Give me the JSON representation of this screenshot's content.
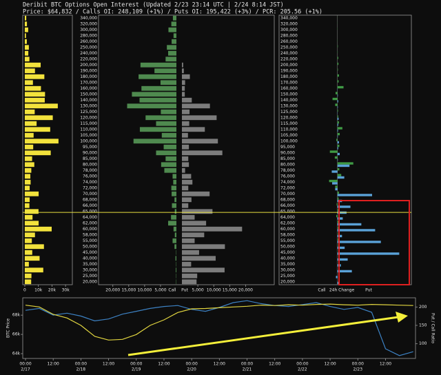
{
  "chart_data": [
    {
      "type": "oi-ladder",
      "title": "Deribit BTC Options Open Interest  (Updated 2/23 23:14 UTC | 2/24 8:14 JST)",
      "subtitle": "Price: $64,832 / Calls OI: 248,109 (+1%) / Puts OI: 195,422 (+3%) / PCR: 205.56 (+1%)",
      "strikes": [
        {
          "value": 340000,
          "label": "340,000"
        },
        {
          "value": 320000,
          "label": "320,000"
        },
        {
          "value": 300000,
          "label": "300,000"
        },
        {
          "value": 280000,
          "label": "280,000"
        },
        {
          "value": 260000,
          "label": "260,000"
        },
        {
          "value": 250000,
          "label": "250,000"
        },
        {
          "value": 240000,
          "label": "240,000"
        },
        {
          "value": 220000,
          "label": "220,000"
        },
        {
          "value": 200000,
          "label": "200,000"
        },
        {
          "value": 190000,
          "label": "190,000"
        },
        {
          "value": 180000,
          "label": "180,000"
        },
        {
          "value": 170000,
          "label": "170,000"
        },
        {
          "value": 160000,
          "label": "160,000"
        },
        {
          "value": 150000,
          "label": "150,000"
        },
        {
          "value": 140000,
          "label": "140,000"
        },
        {
          "value": 130000,
          "label": "130,000"
        },
        {
          "value": 125000,
          "label": "125,000"
        },
        {
          "value": 120000,
          "label": "120,000"
        },
        {
          "value": 115000,
          "label": "115,000"
        },
        {
          "value": 110000,
          "label": "110,000"
        },
        {
          "value": 105000,
          "label": "105,000"
        },
        {
          "value": 100000,
          "label": "100,000"
        },
        {
          "value": 95000,
          "label": "95,000"
        },
        {
          "value": 90000,
          "label": "90,000"
        },
        {
          "value": 85000,
          "label": "85,000"
        },
        {
          "value": 80000,
          "label": "80,000"
        },
        {
          "value": 78000,
          "label": "78,000"
        },
        {
          "value": 76000,
          "label": "76,000"
        },
        {
          "value": 74000,
          "label": "74,000"
        },
        {
          "value": 72000,
          "label": "72,000"
        },
        {
          "value": 70000,
          "label": "70,000"
        },
        {
          "value": 68000,
          "label": "68,000"
        },
        {
          "value": 66000,
          "label": "66,000"
        },
        {
          "value": 65000,
          "label": "65,000"
        },
        {
          "value": 64000,
          "label": "64,000"
        },
        {
          "value": 62000,
          "label": "62,000"
        },
        {
          "value": 60000,
          "label": "60,000"
        },
        {
          "value": 58000,
          "label": "58,000"
        },
        {
          "value": 55000,
          "label": "55,000"
        },
        {
          "value": 50000,
          "label": "50,000"
        },
        {
          "value": 45000,
          "label": "45,000"
        },
        {
          "value": 40000,
          "label": "40,000"
        },
        {
          "value": 35000,
          "label": "35,000"
        },
        {
          "value": 30000,
          "label": "30,000"
        },
        {
          "value": 25000,
          "label": "25,000"
        },
        {
          "value": 20000,
          "label": "20,000"
        }
      ],
      "total": {
        "color": "#f2e23c",
        "values": [
          1100,
          1600,
          2500,
          900,
          1500,
          3000,
          2600,
          3400,
          11700,
          7500,
          14400,
          6000,
          11900,
          14900,
          14700,
          24300,
          7300,
          20600,
          8700,
          18700,
          6500,
          24800,
          6200,
          19100,
          5400,
          7000,
          4800,
          4100,
          4300,
          3600,
          10200,
          3600,
          3400,
          10100,
          5700,
          10200,
          19800,
          7500,
          5200,
          14100,
          5500,
          10900,
          3000,
          13600,
          4900,
          4700
        ],
        "xlim": [
          -1500,
          35000
        ],
        "xticks": [
          0,
          {
            "value": 10000,
            "label": "10k"
          },
          {
            "value": 20000,
            "label": "20k"
          },
          {
            "value": 30000,
            "label": "30k"
          }
        ]
      },
      "series": [
        {
          "name": "Call",
          "color": "#4f8a4f",
          "values": [
            1100,
            1600,
            2500,
            900,
            1500,
            3000,
            2600,
            3400,
            11300,
            6900,
            11900,
            5000,
            11000,
            14000,
            11600,
            15500,
            4900,
            9700,
            6400,
            11500,
            4600,
            13500,
            4000,
            6400,
            3400,
            4800,
            3800,
            1200,
            1000,
            1600,
            1500,
            600,
            1400,
            500,
            1700,
            2600,
            900,
            500,
            1200,
            600,
            100,
            300,
            100,
            200,
            100,
            100
          ]
        },
        {
          "name": "Put",
          "color": "#7c7c7c",
          "values": [
            0,
            0,
            0,
            0,
            0,
            0,
            0,
            0,
            400,
            600,
            2500,
            1000,
            900,
            900,
            3100,
            8800,
            2400,
            10900,
            2300,
            7200,
            1900,
            11300,
            2200,
            12700,
            2000,
            2200,
            1000,
            2900,
            3300,
            2000,
            8700,
            3000,
            2000,
            9600,
            4000,
            7600,
            18900,
            7000,
            4000,
            13500,
            5400,
            10600,
            2900,
            13400,
            4800,
            4600
          ]
        }
      ],
      "call_xlim": [
        24500,
        0
      ],
      "call_xticks": [
        {
          "value": 20000,
          "label": "20,000"
        },
        {
          "value": 15000,
          "label": "15,000"
        },
        {
          "value": 10000,
          "label": "10,000"
        },
        {
          "value": 5000,
          "label": "5,000"
        }
      ],
      "put_xlim": [
        0,
        29000
      ],
      "put_xticks": [
        {
          "value": 5000,
          "label": "5,000"
        },
        {
          "value": 10000,
          "label": "10,000"
        },
        {
          "value": 15000,
          "label": "15,000"
        },
        {
          "value": 20000,
          "label": "20,000"
        }
      ],
      "change": {
        "label": "24h Change",
        "xlim": [
          -1540,
          1950
        ],
        "series": [
          {
            "name": "Call",
            "color": "#3f9a45",
            "values": [
              2,
              3,
              5,
              1,
              4,
              10,
              6,
              20,
              25,
              12,
              40,
              30,
              160,
              -50,
              -130,
              -60,
              15,
              20,
              40,
              130,
              60,
              -30,
              50,
              -200,
              -70,
              418,
              50,
              100,
              -220,
              -60,
              40,
              30,
              -20,
              60,
              -30,
              30,
              20,
              10,
              20,
              10,
              5,
              3,
              1,
              0,
              0,
              0
            ]
          },
          {
            "name": "Put",
            "color": "#5aa2d8",
            "values": [
              0,
              0,
              0,
              0,
              0,
              0,
              0,
              0,
              0,
              0,
              0,
              0,
              5,
              10,
              20,
              10,
              5,
              30,
              20,
              15,
              10,
              40,
              20,
              60,
              10,
              318,
              -150,
              180,
              -140,
              -60,
              914,
              120,
              342,
              240,
              140,
              630,
              994,
              120,
              1145,
              190,
              1630,
              270,
              90,
              380,
              -40,
              40
            ]
          }
        ]
      },
      "spot": 64832,
      "spot_color": "#e8e040"
    },
    {
      "type": "line",
      "ylabel": "BTC Price",
      "y2label": "Put / Call Ratio",
      "x": [
        0,
        6,
        12,
        18,
        24,
        30,
        36,
        42,
        48,
        54,
        60,
        66,
        72,
        78,
        84,
        90,
        96,
        102,
        108,
        114,
        120,
        126,
        132,
        138,
        144,
        150,
        156,
        162,
        168
      ],
      "xlim": [
        -1.2,
        169
      ],
      "xticks": [
        {
          "value": 0,
          "label": "00:00"
        },
        {
          "value": 12,
          "label": "12:00"
        },
        {
          "value": 24,
          "label": "00:00"
        },
        {
          "value": 36,
          "label": "12:00"
        },
        {
          "value": 48,
          "label": "00:00"
        },
        {
          "value": 60,
          "label": "12:00"
        },
        {
          "value": 72,
          "label": "00:00"
        },
        {
          "value": 84,
          "label": "12:00"
        },
        {
          "value": 96,
          "label": "00:00"
        },
        {
          "value": 108,
          "label": "12:00"
        },
        {
          "value": 120,
          "label": "00:00"
        },
        {
          "value": 132,
          "label": "12:00"
        },
        {
          "value": 144,
          "label": "00:00"
        },
        {
          "value": 156,
          "label": "12:00"
        }
      ],
      "date_ticks": [
        {
          "value": 0,
          "label": "2/17"
        },
        {
          "value": 24,
          "label": "2/18"
        },
        {
          "value": 48,
          "label": "2/19"
        },
        {
          "value": 72,
          "label": "2/20"
        },
        {
          "value": 96,
          "label": "2/21"
        },
        {
          "value": 120,
          "label": "2/22"
        },
        {
          "value": 144,
          "label": "2/23"
        }
      ],
      "ylim": [
        63500,
        69800
      ],
      "yticks": [
        {
          "value": 64000,
          "label": "64k"
        },
        {
          "value": 66000,
          "label": "66k"
        },
        {
          "value": 68000,
          "label": "68k"
        }
      ],
      "y2lim": [
        60,
        225
      ],
      "y2ticks": [
        100,
        150,
        200
      ],
      "series": [
        {
          "color": "#3d82c4",
          "values": [
            68500,
            68700,
            68000,
            68200,
            67900,
            67400,
            67600,
            68100,
            68400,
            68700,
            68900,
            69000,
            68600,
            68400,
            68800,
            69300,
            69500,
            69200,
            69000,
            68900,
            69100,
            69300,
            68900,
            68600,
            68800,
            68300,
            64500,
            63800,
            64200
          ]
        },
        {
          "color": "#e2d640",
          "axis": "y2",
          "values": [
            205,
            200,
            180,
            170,
            150,
            120,
            110,
            112,
            125,
            150,
            165,
            185,
            195,
            196,
            198,
            200,
            202,
            205,
            204,
            206,
            205,
            207,
            208,
            206,
            205,
            207,
            206,
            205,
            204
          ]
        }
      ]
    }
  ]
}
